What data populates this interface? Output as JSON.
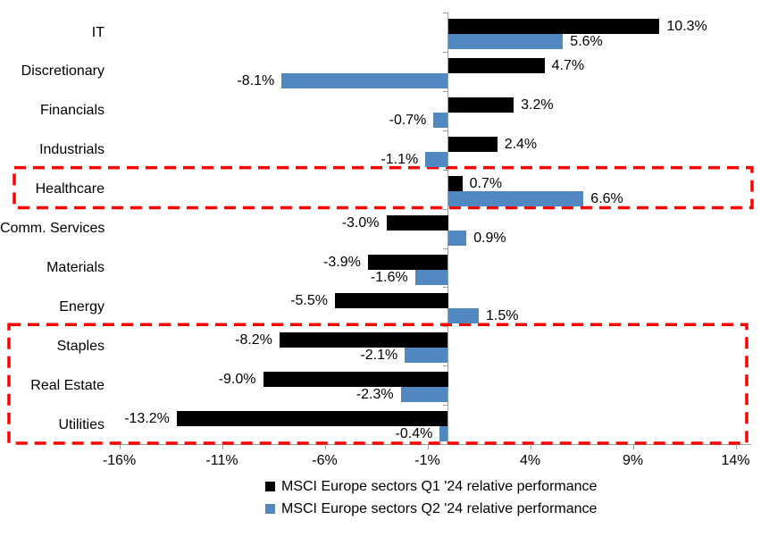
{
  "chart_data": {
    "type": "bar",
    "orientation": "horizontal",
    "title": "",
    "xlabel": "",
    "ylabel": "",
    "grid": false,
    "legend_position": "bottom",
    "categories": [
      "IT",
      "Discretionary",
      "Financials",
      "Industrials",
      "Healthcare",
      "Comm. Services",
      "Materials",
      "Energy",
      "Staples",
      "Real Estate",
      "Utilities"
    ],
    "series": [
      {
        "name": "MSCI Europe sectors Q1 '24 relative performance",
        "color": "#000000",
        "values": [
          10.3,
          4.7,
          3.2,
          2.4,
          0.7,
          -3.0,
          -3.9,
          -5.5,
          -8.2,
          -9.0,
          -13.2
        ],
        "labels": [
          "10.3%",
          "4.7%",
          "3.2%",
          "2.4%",
          "0.7%",
          "-3.0%",
          "-3.9%",
          "-5.5%",
          "-8.2%",
          "-9.0%",
          "-13.2%"
        ]
      },
      {
        "name": "MSCI Europe sectors Q2 '24 relative performance",
        "color": "#5288C2",
        "values": [
          5.6,
          -8.1,
          -0.7,
          -1.1,
          6.6,
          0.9,
          -1.6,
          1.5,
          -2.1,
          -2.3,
          -0.4
        ],
        "labels": [
          "5.6%",
          "-8.1%",
          "-0.7%",
          "-1.1%",
          "6.6%",
          "0.9%",
          "-1.6%",
          "1.5%",
          "-2.1%",
          "-2.3%",
          "-0.4%"
        ]
      }
    ],
    "x_ticks": [
      {
        "value": -16,
        "label": "-16%"
      },
      {
        "value": -11,
        "label": "-11%"
      },
      {
        "value": -6,
        "label": "-6%"
      },
      {
        "value": -1,
        "label": "-1%"
      },
      {
        "value": 4,
        "label": "4%"
      },
      {
        "value": 9,
        "label": "9%"
      },
      {
        "value": 14,
        "label": "14%"
      }
    ],
    "xlim": [
      -16.5,
      14.8
    ],
    "highlight_boxes": [
      {
        "sectors": [
          "Healthcare"
        ],
        "color": "#FF0000",
        "style": "dashed"
      },
      {
        "sectors": [
          "Staples",
          "Real Estate",
          "Utilities"
        ],
        "color": "#FF0000",
        "style": "dashed"
      }
    ],
    "axis_color": "#9e9e9e"
  }
}
